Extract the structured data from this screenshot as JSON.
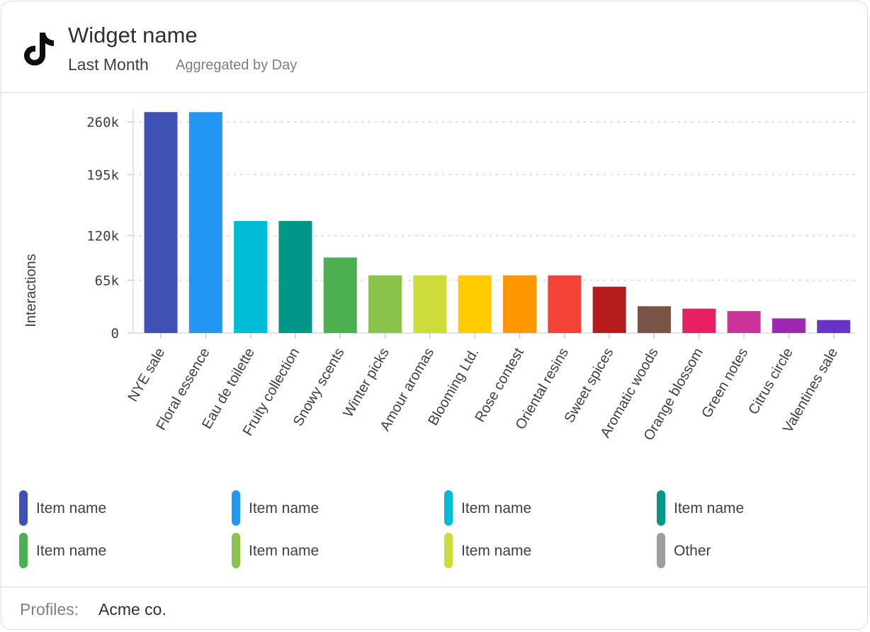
{
  "widget": {
    "title": "Widget name",
    "period": "Last Month",
    "aggregation": "Aggregated by Day",
    "logo_icon": "tiktok-icon"
  },
  "chart_data": {
    "type": "bar",
    "ylabel": "Interactions",
    "xlabel": "",
    "ylim": [
      0,
      260000
    ],
    "yticks": [
      0,
      65000,
      120000,
      195000,
      260000
    ],
    "ytick_labels": [
      "0",
      "65k",
      "120k",
      "195k",
      "260k"
    ],
    "grid": "horizontal dotted",
    "categories": [
      "NYE sale",
      "Floral essence",
      "Eau de toilette",
      "Fruity collection",
      "Snowy scents",
      "Winter picks",
      "Amour aromas",
      "Blooming Ltd.",
      "Rose contest",
      "Oriental resins",
      "Sweet spices",
      "Aromatic woods",
      "Orange blossom",
      "Green notes",
      "Citrus circle",
      "Valentines sale"
    ],
    "values": [
      272000,
      272000,
      138000,
      138000,
      93000,
      71000,
      71000,
      71000,
      71000,
      71000,
      57000,
      33000,
      30000,
      27000,
      18000,
      16000
    ],
    "colors": [
      "#3f51b5",
      "#2196f3",
      "#00bcd4",
      "#009688",
      "#4caf50",
      "#8bc34a",
      "#cddc39",
      "#ffcc00",
      "#ff9800",
      "#f44336",
      "#b71c1c",
      "#795548",
      "#e91e63",
      "#cc3399",
      "#9c27b0",
      "#6633cc"
    ]
  },
  "legend": [
    {
      "label": "Item name",
      "color": "#3f51b5"
    },
    {
      "label": "Item name",
      "color": "#2196f3"
    },
    {
      "label": "Item name",
      "color": "#00bcd4"
    },
    {
      "label": "Item name",
      "color": "#009688"
    },
    {
      "label": "Item name",
      "color": "#4caf50"
    },
    {
      "label": "Item name",
      "color": "#8bc34a"
    },
    {
      "label": "Item name",
      "color": "#cddc39"
    },
    {
      "label": "Other",
      "color": "#9e9e9e"
    }
  ],
  "footer": {
    "key": "Profiles:",
    "value": "Acme co."
  }
}
